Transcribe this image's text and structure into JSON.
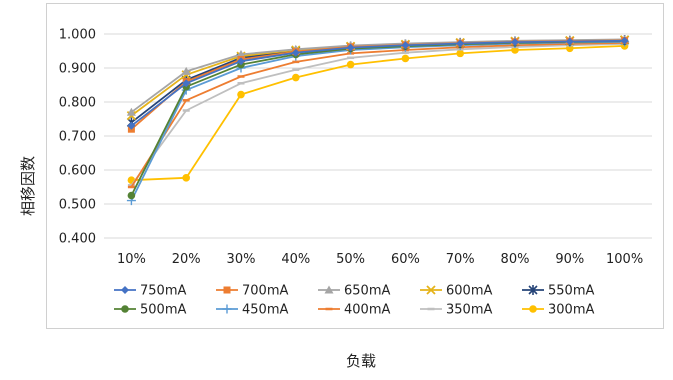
{
  "chart_data": {
    "type": "line",
    "title": "",
    "xlabel": "负载",
    "ylabel": "相移因数",
    "categories": [
      "10%",
      "20%",
      "30%",
      "40%",
      "50%",
      "60%",
      "70%",
      "80%",
      "90%",
      "100%"
    ],
    "yticks": [
      "0.400",
      "0.500",
      "0.600",
      "0.700",
      "0.800",
      "0.900",
      "1.000"
    ],
    "ylim": [
      0.4,
      1.0
    ],
    "grid": "horizontal",
    "legend_position": "bottom-inside",
    "series": [
      {
        "name": "750mA",
        "color": "#4472C4",
        "marker": "diamond",
        "values": [
          0.73,
          0.855,
          0.92,
          0.945,
          0.96,
          0.967,
          0.972,
          0.976,
          0.978,
          0.98
        ]
      },
      {
        "name": "700mA",
        "color": "#ED7D31",
        "marker": "square",
        "values": [
          0.72,
          0.86,
          0.925,
          0.948,
          0.962,
          0.968,
          0.973,
          0.977,
          0.979,
          0.981
        ]
      },
      {
        "name": "650mA",
        "color": "#A5A5A5",
        "marker": "triangle",
        "values": [
          0.77,
          0.89,
          0.94,
          0.955,
          0.966,
          0.972,
          0.976,
          0.98,
          0.982,
          0.984
        ]
      },
      {
        "name": "600mA",
        "color": "#E5B31A",
        "marker": "x",
        "values": [
          0.76,
          0.88,
          0.935,
          0.953,
          0.964,
          0.97,
          0.975,
          0.979,
          0.981,
          0.983
        ]
      },
      {
        "name": "550mA",
        "color": "#264478",
        "marker": "star",
        "values": [
          0.74,
          0.865,
          0.93,
          0.95,
          0.963,
          0.969,
          0.974,
          0.978,
          0.98,
          0.982
        ]
      },
      {
        "name": "500mA",
        "color": "#548235",
        "marker": "circle",
        "values": [
          0.525,
          0.845,
          0.91,
          0.94,
          0.957,
          0.964,
          0.97,
          0.974,
          0.977,
          0.979
        ]
      },
      {
        "name": "450mA",
        "color": "#5B9BD5",
        "marker": "plus",
        "values": [
          0.51,
          0.835,
          0.9,
          0.935,
          0.953,
          0.961,
          0.967,
          0.972,
          0.975,
          0.977
        ]
      },
      {
        "name": "400mA",
        "color": "#ED7D31",
        "marker": "dash",
        "values": [
          0.55,
          0.805,
          0.875,
          0.918,
          0.943,
          0.953,
          0.961,
          0.967,
          0.971,
          0.974
        ]
      },
      {
        "name": "350mA",
        "color": "#BFBFBF",
        "marker": "dash",
        "values": [
          0.555,
          0.775,
          0.855,
          0.895,
          0.93,
          0.945,
          0.955,
          0.962,
          0.967,
          0.971
        ]
      },
      {
        "name": "300mA",
        "color": "#FFC000",
        "marker": "circle",
        "values": [
          0.57,
          0.577,
          0.822,
          0.872,
          0.91,
          0.928,
          0.943,
          0.953,
          0.958,
          0.965
        ]
      }
    ]
  }
}
